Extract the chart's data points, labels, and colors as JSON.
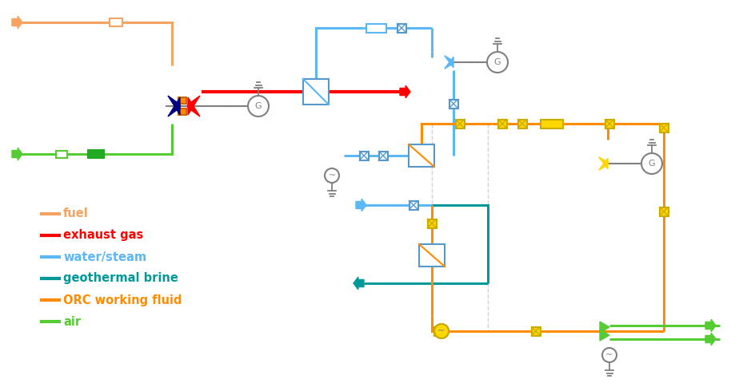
{
  "colors": {
    "fuel": "#F4A460",
    "exhaust": "#FF0000",
    "water_steam": "#5BB8F5",
    "geothermal": "#009999",
    "orc": "#FF8C00",
    "air": "#55CC33",
    "yellow_box": "#FFD700",
    "yellow_edge": "#CCAA00",
    "box_edge": "#5599CC",
    "bg": "#FFFFFF"
  },
  "legend": [
    {
      "label": "fuel",
      "color": "#F4A460"
    },
    {
      "label": "exhaust gas",
      "color": "#FF0000"
    },
    {
      "label": "water/steam",
      "color": "#5BB8F5"
    },
    {
      "label": "geothermal brine",
      "color": "#009999"
    },
    {
      "label": "ORC working fluid",
      "color": "#FF8C00"
    },
    {
      "label": "air",
      "color": "#55CC33"
    }
  ]
}
